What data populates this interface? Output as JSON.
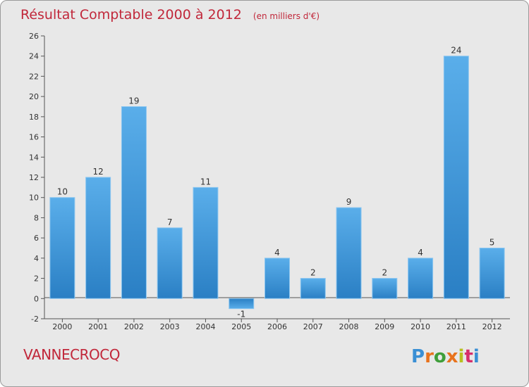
{
  "chart_data": {
    "type": "bar",
    "title": "Résultat Comptable 2000 à 2012",
    "subtitle": "(en milliers d'€)",
    "categories": [
      "2000",
      "2001",
      "2002",
      "2003",
      "2004",
      "2005",
      "2006",
      "2007",
      "2008",
      "2009",
      "2010",
      "2011",
      "2012"
    ],
    "values": [
      10,
      12,
      19,
      7,
      11,
      -1,
      4,
      2,
      9,
      2,
      4,
      24,
      5
    ],
    "ylim": [
      -2,
      26
    ],
    "yticks": [
      "-2",
      "0",
      "2",
      "4",
      "6",
      "8",
      "10",
      "12",
      "14",
      "16",
      "18",
      "20",
      "22",
      "24",
      "26"
    ],
    "xlabel": "",
    "ylabel": "",
    "grid": false,
    "legend": "none",
    "bar_color": "#3c93d8"
  },
  "commune": "VANNECROCQ",
  "logo": {
    "letters": [
      "P",
      "r",
      "o",
      "x",
      "i",
      "t",
      "i"
    ],
    "colors": [
      "#3a8fd4",
      "#e8731d",
      "#3f9e3a",
      "#e8731d",
      "#b8bf1f",
      "#d62e6b",
      "#3a8fd4"
    ]
  }
}
